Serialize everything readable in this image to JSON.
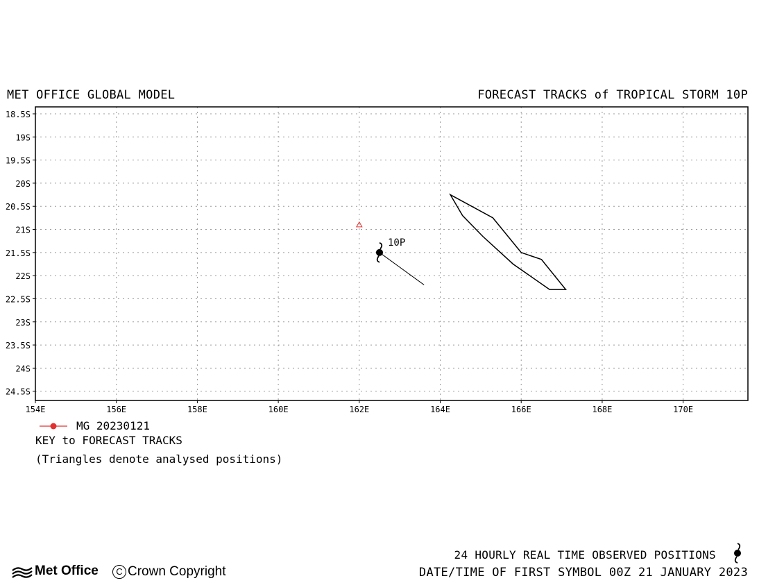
{
  "header": {
    "left_title": "MET OFFICE GLOBAL MODEL",
    "right_title": "FORECAST TRACKS of TROPICAL STORM 10P"
  },
  "map": {
    "lon_range": [
      154,
      171.6
    ],
    "lat_range": [
      -18.35,
      -24.7
    ],
    "lon_ticks": [
      154,
      156,
      158,
      160,
      162,
      164,
      166,
      168,
      170
    ],
    "lon_labels": [
      "154E",
      "156E",
      "158E",
      "160E",
      "162E",
      "164E",
      "166E",
      "168E",
      "170E"
    ],
    "lat_ticks": [
      -18.5,
      -19,
      -19.5,
      -20,
      -20.5,
      -21,
      -21.5,
      -22,
      -22.5,
      -23,
      -23.5,
      -24,
      -24.5
    ],
    "lat_labels": [
      "18.5S",
      "19S",
      "19.5S",
      "20S",
      "20.5S",
      "21S",
      "21.5S",
      "22S",
      "22.5S",
      "23S",
      "23.5S",
      "24S",
      "24.5S"
    ],
    "grid": "dotted",
    "storm": {
      "label": "10P",
      "lon": 162.5,
      "lat": -21.5,
      "icon": "tropical-storm-icon"
    },
    "track_line": [
      [
        162.5,
        -21.5
      ],
      [
        163.6,
        -22.2
      ]
    ],
    "analysed_position": {
      "lon": 162.0,
      "lat": -20.9,
      "color": "#e03030"
    },
    "outline_polygon": [
      [
        164.25,
        -20.25
      ],
      [
        165.3,
        -20.75
      ],
      [
        166.0,
        -21.5
      ],
      [
        166.5,
        -21.65
      ],
      [
        167.1,
        -22.3
      ],
      [
        166.7,
        -22.3
      ],
      [
        165.8,
        -21.75
      ],
      [
        165.05,
        -21.15
      ],
      [
        164.55,
        -20.7
      ]
    ],
    "outline_color": "#000000"
  },
  "legend": {
    "run_label": "MG 20230121",
    "run_color": "#e03030",
    "key_title": "KEY to FORECAST TRACKS",
    "note": "(Triangles denote analysed positions)"
  },
  "footer": {
    "observed": "24 HOURLY REAL TIME OBSERVED POSITIONS",
    "observed_icon": "tropical-storm-icon",
    "date_time": "DATE/TIME OF FIRST SYMBOL 00Z 21 JANUARY 2023",
    "logo": "Met Office",
    "copyright_symbol": "C",
    "copyright": "Crown Copyright"
  }
}
